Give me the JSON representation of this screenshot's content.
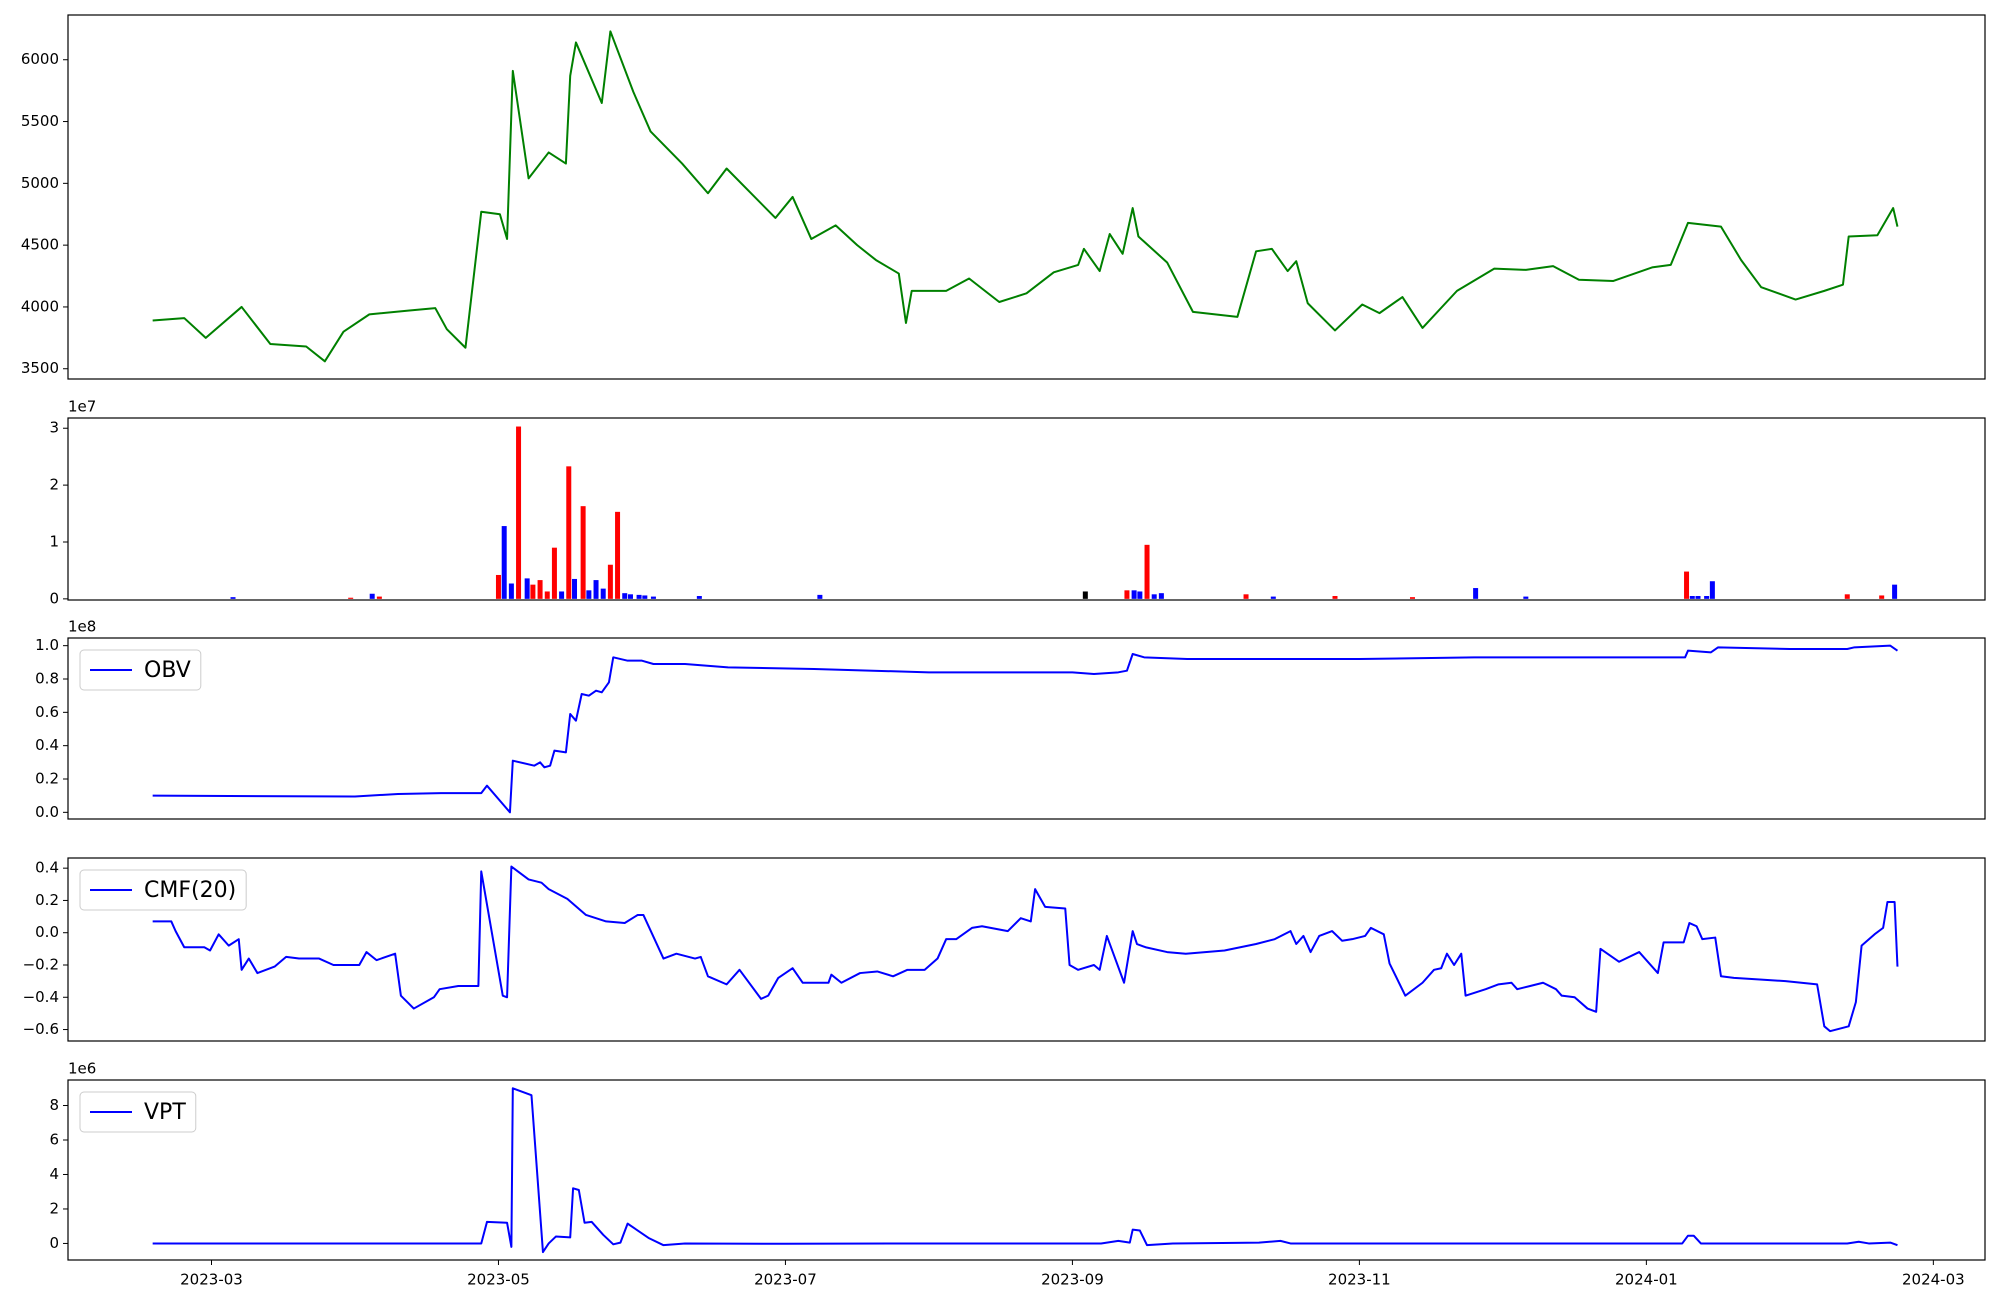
{
  "chart_data": [
    {
      "type": "line",
      "xlim": [
        1.0,
        14.36
      ],
      "ylim": [
        3417,
        6362
      ],
      "yticks": [
        3500,
        4000,
        4500,
        5000,
        5500,
        6000
      ],
      "series": [
        {
          "color": "green",
          "x": [
            1.59,
            1.81,
            1.96,
            2.21,
            2.41,
            2.66,
            2.79,
            2.92,
            3.1,
            3.37,
            3.56,
            3.64,
            3.77,
            3.88,
            4.01,
            4.06,
            4.1,
            4.21,
            4.35,
            4.47,
            4.5,
            4.54,
            4.72,
            4.78,
            4.94,
            5.06,
            5.28,
            5.46,
            5.59,
            5.93,
            6.05,
            6.18,
            6.35,
            6.5,
            6.63,
            6.79,
            6.84,
            6.88,
            7.12,
            7.28,
            7.49,
            7.68,
            7.87,
            8.04,
            8.08,
            8.19,
            8.26,
            8.35,
            8.42,
            8.46,
            8.66,
            8.84,
            9.15,
            9.28,
            9.39,
            9.5,
            9.56,
            9.64,
            9.83,
            10.02,
            10.14,
            10.3,
            10.44,
            10.68,
            10.94,
            11.16,
            11.35,
            11.53,
            11.77,
            12.04,
            12.17,
            12.29,
            12.52,
            12.66,
            12.8,
            13.04,
            13.24,
            13.37,
            13.41,
            13.61,
            13.72,
            13.75
          ],
          "values": [
            3890,
            3910,
            3750,
            4000,
            3700,
            3680,
            3560,
            3800,
            3940,
            3970,
            3990,
            3820,
            3670,
            4770,
            4750,
            4550,
            5910,
            5040,
            5250,
            5160,
            5870,
            6140,
            5650,
            6230,
            5740,
            5420,
            5160,
            4920,
            5120,
            4720,
            4890,
            4550,
            4660,
            4500,
            4380,
            4270,
            3870,
            4130,
            4130,
            4230,
            4040,
            4110,
            4280,
            4340,
            4470,
            4290,
            4590,
            4430,
            4800,
            4570,
            4360,
            3960,
            3920,
            4450,
            4470,
            4290,
            4370,
            4030,
            3810,
            4020,
            3950,
            4080,
            3830,
            4130,
            4310,
            4300,
            4330,
            4220,
            4210,
            4320,
            4340,
            4680,
            4650,
            4380,
            4160,
            4060,
            4130,
            4180,
            4570,
            4580,
            4800,
            4650
          ]
        }
      ]
    },
    {
      "type": "bar",
      "offset_label": "1e7",
      "xlim": [
        1.0,
        14.36
      ],
      "ylim": [
        -0.02,
        3.18
      ],
      "yticks": [
        0,
        1,
        2,
        3
      ],
      "x": [
        2.15,
        2.97,
        3.12,
        3.17,
        4.0,
        4.04,
        4.09,
        4.14,
        4.2,
        4.24,
        4.29,
        4.34,
        4.39,
        4.44,
        4.49,
        4.53,
        4.59,
        4.63,
        4.68,
        4.73,
        4.78,
        4.83,
        4.88,
        4.92,
        4.98,
        5.02,
        5.08,
        5.4,
        6.24,
        8.09,
        8.38,
        8.43,
        8.47,
        8.52,
        8.57,
        8.62,
        9.21,
        9.4,
        9.83,
        10.37,
        10.81,
        11.16,
        12.28,
        12.32,
        12.36,
        12.42,
        12.46,
        13.4,
        13.64,
        13.73
      ],
      "values": [
        0.03,
        0.02,
        0.09,
        0.04,
        0.42,
        1.28,
        0.27,
        3.03,
        0.36,
        0.25,
        0.33,
        0.13,
        0.9,
        0.13,
        2.33,
        0.35,
        1.63,
        0.15,
        0.33,
        0.18,
        0.6,
        1.53,
        0.1,
        0.08,
        0.07,
        0.06,
        0.04,
        0.05,
        0.07,
        0.13,
        0.15,
        0.15,
        0.13,
        0.95,
        0.08,
        0.1,
        0.08,
        0.04,
        0.05,
        0.03,
        0.19,
        0.04,
        0.48,
        0.05,
        0.05,
        0.05,
        0.31,
        0.08,
        0.06,
        0.25
      ],
      "colors": [
        "blue",
        "red",
        "blue",
        "red",
        "red",
        "blue",
        "blue",
        "red",
        "blue",
        "red",
        "red",
        "red",
        "red",
        "blue",
        "red",
        "blue",
        "red",
        "blue",
        "blue",
        "blue",
        "red",
        "red",
        "blue",
        "blue",
        "blue",
        "blue",
        "blue",
        "blue",
        "blue",
        "black",
        "red",
        "blue",
        "blue",
        "red",
        "blue",
        "blue",
        "red",
        "blue",
        "red",
        "red",
        "blue",
        "blue",
        "red",
        "blue",
        "blue",
        "blue",
        "blue",
        "red",
        "red",
        "blue"
      ]
    },
    {
      "type": "line",
      "offset_label": "1e8",
      "legend": "upper left",
      "xlim": [
        1.0,
        14.36
      ],
      "ylim": [
        -0.04,
        1.046
      ],
      "yticks": [
        {
          "value": 0,
          "label": "0.0"
        },
        0.2,
        0.4,
        0.6,
        0.8,
        {
          "value": 1,
          "label": "1.0"
        }
      ],
      "series": [
        {
          "name": "OBV",
          "color": "blue",
          "x": [
            1.59,
            3.0,
            3.3,
            3.6,
            3.88,
            3.92,
            4.08,
            4.1,
            4.25,
            4.29,
            4.32,
            4.36,
            4.39,
            4.47,
            4.5,
            4.54,
            4.58,
            4.63,
            4.68,
            4.72,
            4.77,
            4.8,
            4.9,
            5.0,
            5.08,
            5.3,
            5.6,
            6.2,
            7.0,
            8.0,
            8.15,
            8.32,
            8.38,
            8.42,
            8.5,
            8.8,
            9.5,
            10.0,
            10.8,
            11.5,
            12.27,
            12.29,
            12.45,
            12.5,
            13.0,
            13.4,
            13.45,
            13.7,
            13.75
          ],
          "values": [
            0.1,
            0.095,
            0.11,
            0.115,
            0.115,
            0.16,
            0.0,
            0.31,
            0.28,
            0.3,
            0.27,
            0.28,
            0.37,
            0.36,
            0.59,
            0.55,
            0.71,
            0.7,
            0.73,
            0.72,
            0.78,
            0.93,
            0.91,
            0.91,
            0.89,
            0.89,
            0.87,
            0.86,
            0.84,
            0.84,
            0.83,
            0.84,
            0.85,
            0.95,
            0.93,
            0.92,
            0.92,
            0.92,
            0.93,
            0.93,
            0.93,
            0.97,
            0.96,
            0.99,
            0.98,
            0.98,
            0.99,
            1.0,
            0.97
          ]
        }
      ]
    },
    {
      "type": "line",
      "legend": "upper left",
      "xlim": [
        1.0,
        14.36
      ],
      "ylim": [
        -0.671,
        0.463
      ],
      "yticks": [
        {
          "value": -0.6,
          "label": "−0.6"
        },
        {
          "value": -0.4,
          "label": "−0.4"
        },
        {
          "value": -0.2,
          "label": "−0.2"
        },
        {
          "value": 0,
          "label": "0.0"
        },
        0.2,
        0.4
      ],
      "series": [
        {
          "name": "CMF(20)",
          "color": "blue",
          "x": [
            1.59,
            1.72,
            1.75,
            1.81,
            1.95,
            1.99,
            2.05,
            2.12,
            2.19,
            2.21,
            2.26,
            2.32,
            2.44,
            2.52,
            2.61,
            2.75,
            2.85,
            2.92,
            3.03,
            3.08,
            3.15,
            3.28,
            3.32,
            3.41,
            3.55,
            3.59,
            3.72,
            3.86,
            3.88,
            4.03,
            4.06,
            4.09,
            4.21,
            4.3,
            4.35,
            4.48,
            4.61,
            4.75,
            4.88,
            4.97,
            5.01,
            5.15,
            5.24,
            5.37,
            5.41,
            5.46,
            5.59,
            5.68,
            5.83,
            5.88,
            5.95,
            6.05,
            6.12,
            6.3,
            6.32,
            6.39,
            6.52,
            6.64,
            6.75,
            6.85,
            6.97,
            7.06,
            7.12,
            7.19,
            7.3,
            7.37,
            7.55,
            7.64,
            7.71,
            7.74,
            7.81,
            7.95,
            7.98,
            8.04,
            8.15,
            8.19,
            8.24,
            8.36,
            8.42,
            8.45,
            8.51,
            8.66,
            8.79,
            9.06,
            9.28,
            9.41,
            9.52,
            9.56,
            9.61,
            9.66,
            9.72,
            9.81,
            9.88,
            9.95,
            10.04,
            10.08,
            10.17,
            10.21,
            10.32,
            10.44,
            10.52,
            10.57,
            10.61,
            10.66,
            10.71,
            10.74,
            10.88,
            10.97,
            11.06,
            11.1,
            11.19,
            11.28,
            11.37,
            11.41,
            11.5,
            11.59,
            11.65,
            11.68,
            11.81,
            11.95,
            12.08,
            12.12,
            12.26,
            12.3,
            12.35,
            12.39,
            12.48,
            12.52,
            12.61,
            12.79,
            12.97,
            13.19,
            13.24,
            13.28,
            13.41,
            13.46,
            13.5,
            13.59,
            13.65,
            13.68,
            13.73,
            13.75
          ],
          "values": [
            0.07,
            0.07,
            0.01,
            -0.09,
            -0.09,
            -0.11,
            -0.01,
            -0.08,
            -0.04,
            -0.23,
            -0.16,
            -0.25,
            -0.21,
            -0.15,
            -0.16,
            -0.16,
            -0.2,
            -0.2,
            -0.2,
            -0.12,
            -0.17,
            -0.13,
            -0.39,
            -0.47,
            -0.4,
            -0.35,
            -0.33,
            -0.33,
            0.38,
            -0.39,
            -0.4,
            0.41,
            0.33,
            0.31,
            0.27,
            0.21,
            0.11,
            0.07,
            0.06,
            0.11,
            0.11,
            -0.16,
            -0.13,
            -0.16,
            -0.15,
            -0.27,
            -0.32,
            -0.23,
            -0.41,
            -0.39,
            -0.28,
            -0.22,
            -0.31,
            -0.31,
            -0.26,
            -0.31,
            -0.25,
            -0.24,
            -0.27,
            -0.23,
            -0.23,
            -0.16,
            -0.04,
            -0.04,
            0.03,
            0.04,
            0.01,
            0.09,
            0.07,
            0.27,
            0.16,
            0.15,
            -0.2,
            -0.23,
            -0.2,
            -0.23,
            -0.02,
            -0.31,
            0.01,
            -0.07,
            -0.09,
            -0.12,
            -0.13,
            -0.11,
            -0.07,
            -0.04,
            0.01,
            -0.07,
            -0.02,
            -0.12,
            -0.02,
            0.01,
            -0.05,
            -0.04,
            -0.02,
            0.03,
            -0.01,
            -0.19,
            -0.39,
            -0.31,
            -0.23,
            -0.22,
            -0.13,
            -0.2,
            -0.13,
            -0.39,
            -0.35,
            -0.32,
            -0.31,
            -0.35,
            -0.33,
            -0.31,
            -0.35,
            -0.39,
            -0.4,
            -0.47,
            -0.49,
            -0.1,
            -0.18,
            -0.12,
            -0.25,
            -0.06,
            -0.06,
            0.06,
            0.04,
            -0.04,
            -0.03,
            -0.27,
            -0.28,
            -0.29,
            -0.3,
            -0.32,
            -0.58,
            -0.61,
            -0.58,
            -0.43,
            -0.08,
            -0.01,
            0.03,
            0.19,
            0.19,
            -0.21
          ]
        }
      ]
    },
    {
      "type": "line",
      "offset_label": "1e6",
      "legend": "upper left",
      "xlim": [
        1.0,
        14.36
      ],
      "ylim": [
        -0.96,
        9.48
      ],
      "yticks": [
        0,
        2,
        4,
        6,
        8
      ],
      "xticks": [
        {
          "value": 2,
          "label": "2023-03"
        },
        {
          "value": 4,
          "label": "2023-05"
        },
        {
          "value": 6,
          "label": "2023-07"
        },
        {
          "value": 8,
          "label": "2023-09"
        },
        {
          "value": 10,
          "label": "2023-11"
        },
        {
          "value": 12,
          "label": "2024-01"
        },
        {
          "value": 14,
          "label": "2024-03"
        }
      ],
      "series": [
        {
          "name": "VPT",
          "color": "blue",
          "x": [
            1.59,
            3.88,
            3.92,
            4.06,
            4.09,
            4.1,
            4.23,
            4.31,
            4.35,
            4.4,
            4.5,
            4.52,
            4.56,
            4.6,
            4.65,
            4.73,
            4.8,
            4.85,
            4.9,
            5.05,
            5.15,
            5.3,
            6.0,
            7.0,
            8.2,
            8.32,
            8.4,
            8.42,
            8.47,
            8.52,
            8.7,
            9.3,
            9.45,
            9.52,
            10.5,
            11.8,
            12.25,
            12.29,
            12.33,
            12.38,
            13.4,
            13.48,
            13.55,
            13.7,
            13.75
          ],
          "values": [
            0,
            0,
            1.25,
            1.2,
            -0.2,
            9.0,
            8.6,
            -0.5,
            0.0,
            0.4,
            0.35,
            3.2,
            3.1,
            1.2,
            1.25,
            0.5,
            -0.05,
            0.05,
            1.15,
            0.3,
            -0.1,
            0,
            -0.02,
            0,
            0,
            0.15,
            0.05,
            0.8,
            0.75,
            -0.1,
            0,
            0.05,
            0.15,
            0,
            0,
            0,
            0,
            0.45,
            0.45,
            0,
            0,
            0.1,
            0,
            0.05,
            -0.1
          ]
        }
      ]
    }
  ]
}
